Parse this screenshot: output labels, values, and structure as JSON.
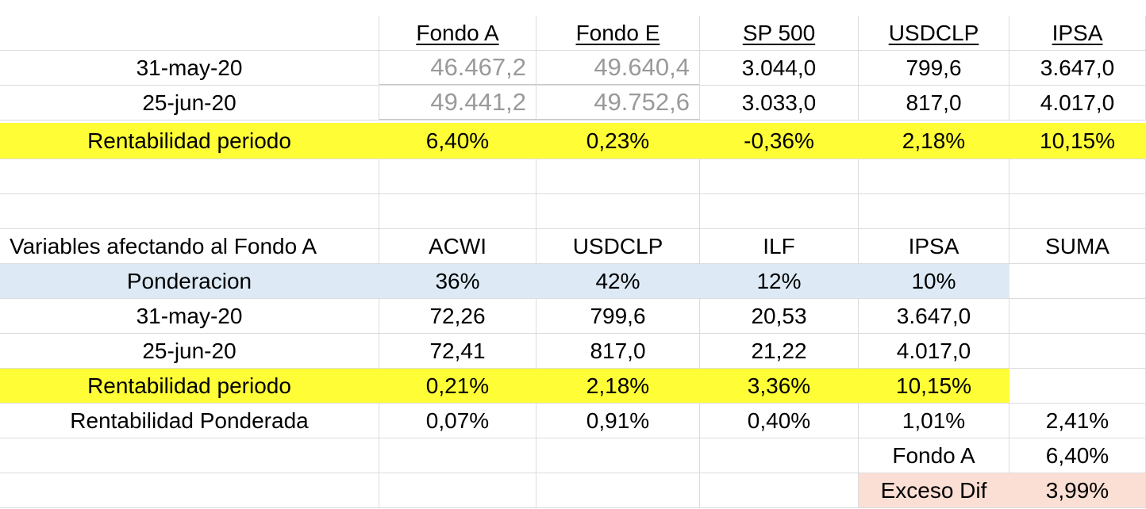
{
  "table1": {
    "headers": [
      "Fondo A",
      "Fondo E",
      "SP 500",
      "USDCLP",
      "IPSA"
    ],
    "rows": [
      {
        "label": "31-may-20",
        "values": [
          "46.467,2",
          "49.640,4",
          "3.044,0",
          "799,6",
          "3.647,0"
        ]
      },
      {
        "label": "25-jun-20",
        "values": [
          "49.441,2",
          "49.752,6",
          "3.033,0",
          "817,0",
          "4.017,0"
        ]
      },
      {
        "label": "Rentabilidad periodo",
        "values": [
          "6,40%",
          "0,23%",
          "-0,36%",
          "2,18%",
          "10,15%"
        ]
      }
    ]
  },
  "table2": {
    "title": "Variables afectando al Fondo A",
    "headers": [
      "ACWI",
      "USDCLP",
      "ILF",
      "IPSA",
      "SUMA"
    ],
    "rows": [
      {
        "label": "Ponderacion",
        "values": [
          "36%",
          "42%",
          "12%",
          "10%",
          ""
        ]
      },
      {
        "label": "31-may-20",
        "values": [
          "72,26",
          "799,6",
          "20,53",
          "3.647,0",
          ""
        ]
      },
      {
        "label": "25-jun-20",
        "values": [
          "72,41",
          "817,0",
          "21,22",
          "4.017,0",
          ""
        ]
      },
      {
        "label": "Rentabilidad periodo",
        "values": [
          "0,21%",
          "2,18%",
          "3,36%",
          "10,15%",
          ""
        ]
      },
      {
        "label": "Rentabilidad Ponderada",
        "values": [
          "0,07%",
          "0,91%",
          "0,40%",
          "1,01%",
          "2,41%"
        ]
      }
    ],
    "fondo_a_label": "Fondo A",
    "fondo_a_value": "6,40%",
    "exceso_label": "Exceso Dif",
    "exceso_value": "3,99%"
  },
  "colors": {
    "highlight_yellow": "#fffe36",
    "highlight_blue": "#ddeaf6",
    "highlight_peach": "#fbdfd4",
    "gray_text": "#9a9a9a",
    "grid": "#dcdcdc"
  }
}
